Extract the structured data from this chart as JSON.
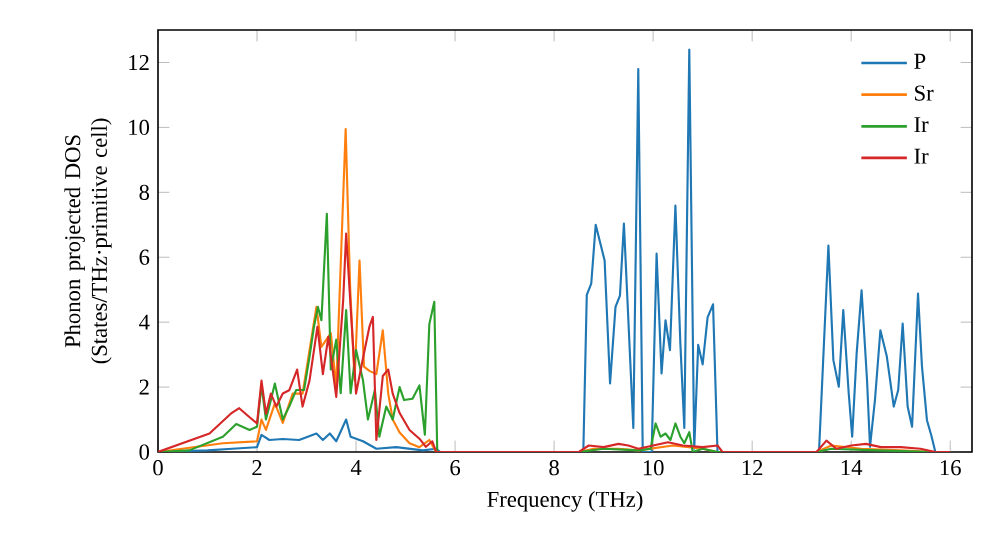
{
  "chart_data": {
    "type": "line",
    "xlabel": "Frequency (THz)",
    "ylabel": "Phonon projected DOS (States/THz·primitive cell)",
    "xlim": [
      0,
      16.44
    ],
    "ylim": [
      0,
      13.0
    ],
    "xticks": [
      0,
      2,
      4,
      6,
      8,
      10,
      12,
      14,
      16
    ],
    "yticks": [
      0,
      2,
      4,
      6,
      8,
      10,
      12
    ],
    "legend": "top right",
    "grid": false,
    "marker": "none",
    "line_style": "solid",
    "series": [
      {
        "name": "P",
        "color": "#1f77b4",
        "x": [
          0,
          1.0,
          1.5,
          2.0,
          2.09,
          2.25,
          2.52,
          2.85,
          3.2,
          3.33,
          3.47,
          3.6,
          3.8,
          3.89,
          4.14,
          4.41,
          4.81,
          5.35,
          5.62,
          5.7,
          8.59,
          8.66,
          8.75,
          8.84,
          9.02,
          9.13,
          9.24,
          9.33,
          9.41,
          9.6,
          9.7,
          9.79,
          9.97,
          10.07,
          10.17,
          10.25,
          10.34,
          10.45,
          10.55,
          10.63,
          10.73,
          10.83,
          10.91,
          11.0,
          11.1,
          11.21,
          11.3,
          13.35,
          13.54,
          13.64,
          13.75,
          13.84,
          13.95,
          14.02,
          14.11,
          14.21,
          14.32,
          14.38,
          14.48,
          14.59,
          14.72,
          14.86,
          14.95,
          15.04,
          15.14,
          15.23,
          15.35,
          15.43,
          15.53,
          15.62,
          15.7,
          16.0
        ],
        "values": [
          0,
          0.05,
          0.1,
          0.15,
          0.53,
          0.37,
          0.4,
          0.37,
          0.57,
          0.37,
          0.57,
          0.33,
          1.0,
          0.47,
          0.33,
          0.1,
          0.15,
          0.05,
          0.1,
          0,
          0,
          4.84,
          5.19,
          7.0,
          5.9,
          2.11,
          4.47,
          4.82,
          7.04,
          0.74,
          11.8,
          0,
          0,
          6.11,
          2.42,
          4.06,
          3.14,
          7.59,
          3.34,
          0.74,
          12.4,
          0.1,
          3.3,
          2.7,
          4.15,
          4.55,
          0,
          0,
          6.36,
          2.83,
          2.01,
          4.37,
          1.81,
          0.47,
          3.03,
          4.98,
          2.21,
          0.16,
          1.6,
          3.75,
          2.94,
          1.4,
          1.91,
          3.96,
          1.4,
          0.78,
          4.88,
          2.63,
          0.98,
          0.5,
          0,
          0
        ]
      },
      {
        "name": "Sr",
        "color": "#ff7f0e",
        "x": [
          0,
          1.31,
          2.0,
          2.09,
          2.18,
          2.36,
          2.52,
          2.72,
          2.92,
          3.2,
          3.3,
          3.49,
          3.6,
          3.79,
          3.88,
          3.97,
          4.07,
          4.16,
          4.27,
          4.41,
          4.54,
          4.65,
          4.74,
          4.88,
          5.08,
          5.28,
          5.48,
          5.62,
          8.5,
          8.8,
          9.3,
          9.7,
          10.4,
          11.0,
          11.3,
          13.3,
          13.6,
          14.2,
          15.0,
          15.7,
          16.0
        ],
        "values": [
          0,
          0.27,
          0.33,
          1.0,
          0.68,
          1.5,
          0.9,
          1.8,
          1.8,
          4.47,
          3.24,
          3.66,
          2.0,
          9.95,
          5.09,
          2.21,
          5.9,
          2.63,
          2.5,
          2.4,
          3.75,
          1.8,
          1.0,
          0.6,
          0.27,
          0.15,
          0.37,
          0,
          0,
          0.1,
          0.1,
          0.05,
          0.2,
          0.1,
          0,
          0,
          0.2,
          0.1,
          0.05,
          0,
          0
        ]
      },
      {
        "name": "Ir",
        "color": "#2ca02c",
        "x": [
          0,
          0.63,
          1.31,
          1.58,
          1.85,
          2.0,
          2.09,
          2.18,
          2.28,
          2.36,
          2.52,
          2.65,
          2.79,
          2.95,
          3.06,
          3.15,
          3.23,
          3.3,
          3.41,
          3.49,
          3.6,
          3.69,
          3.8,
          3.89,
          4.0,
          4.14,
          4.24,
          4.38,
          4.47,
          4.61,
          4.74,
          4.88,
          4.97,
          5.14,
          5.28,
          5.39,
          5.48,
          5.58,
          5.64,
          8.5,
          9.0,
          9.7,
          9.95,
          10.05,
          10.15,
          10.25,
          10.35,
          10.45,
          10.55,
          10.63,
          10.73,
          10.8,
          11.0,
          11.3,
          13.3,
          13.6,
          14.5,
          15.7,
          16.0
        ],
        "values": [
          0,
          0.05,
          0.47,
          0.86,
          0.68,
          0.78,
          2.05,
          1.0,
          1.6,
          2.11,
          1.0,
          1.4,
          1.91,
          1.91,
          2.93,
          3.86,
          4.47,
          4.06,
          7.34,
          2.54,
          3.46,
          1.81,
          4.37,
          1.81,
          3.14,
          2.21,
          1.0,
          1.91,
          0.47,
          1.4,
          1.0,
          2.0,
          1.6,
          1.64,
          2.05,
          0.53,
          3.94,
          4.63,
          0,
          0,
          0.1,
          0.05,
          0.1,
          0.88,
          0.47,
          0.57,
          0.37,
          0.88,
          0.47,
          0.27,
          0.61,
          0,
          0.1,
          0,
          0,
          0.1,
          0.05,
          0,
          0
        ]
      },
      {
        "name": "Ir",
        "color": "#d62728",
        "x": [
          0,
          1.04,
          1.47,
          1.64,
          1.85,
          2.0,
          2.09,
          2.18,
          2.28,
          2.39,
          2.52,
          2.65,
          2.81,
          2.92,
          3.06,
          3.22,
          3.33,
          3.44,
          3.6,
          3.74,
          3.8,
          3.89,
          4.0,
          4.16,
          4.27,
          4.34,
          4.41,
          4.54,
          4.65,
          4.74,
          4.88,
          5.08,
          5.28,
          5.41,
          5.54,
          5.62,
          8.5,
          8.7,
          9.0,
          9.3,
          9.5,
          9.7,
          10.0,
          10.3,
          10.6,
          11.0,
          11.3,
          11.4,
          13.3,
          13.5,
          13.7,
          14.0,
          14.3,
          14.6,
          15.0,
          15.4,
          15.7,
          16.0
        ],
        "values": [
          0,
          0.57,
          1.18,
          1.35,
          1.07,
          0.88,
          2.2,
          1.18,
          1.8,
          1.4,
          1.8,
          1.9,
          2.54,
          1.4,
          2.2,
          3.86,
          2.4,
          3.55,
          1.7,
          4.67,
          6.73,
          4.47,
          1.8,
          3.04,
          3.86,
          4.16,
          0.37,
          2.34,
          2.54,
          1.8,
          1.2,
          0.68,
          0.41,
          0.16,
          0.33,
          0,
          0,
          0.2,
          0.15,
          0.25,
          0.2,
          0.1,
          0.2,
          0.3,
          0.2,
          0.15,
          0.2,
          0,
          0,
          0.35,
          0.1,
          0.2,
          0.25,
          0.15,
          0.15,
          0.1,
          0,
          0
        ]
      }
    ]
  }
}
